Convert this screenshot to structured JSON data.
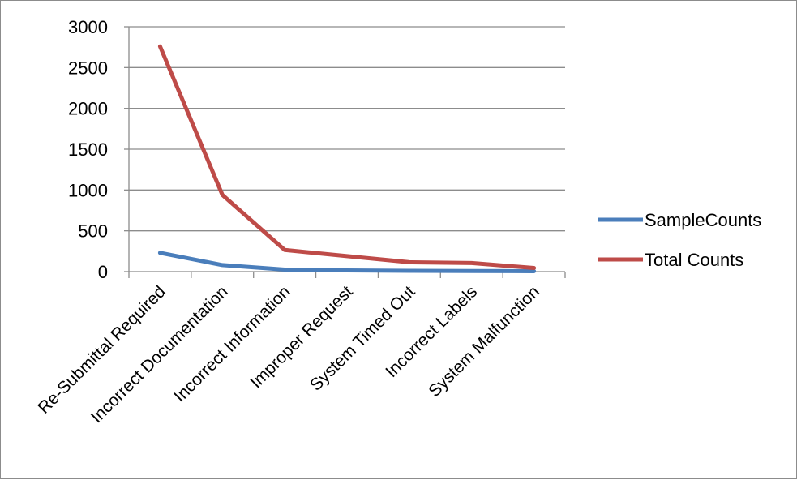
{
  "chart_data": {
    "type": "line",
    "title": "",
    "xlabel": "",
    "ylabel": "",
    "ylim": [
      0,
      3000
    ],
    "yticks": [
      0,
      500,
      1000,
      1500,
      2000,
      2500,
      3000
    ],
    "grid": true,
    "legend_position": "right",
    "categories": [
      "Re-Submittal Required",
      "Incorrect Documentation",
      "Incorrect Information",
      "Improper Request",
      "System Timed Out",
      "Incorrect Labels",
      "System Malfunction"
    ],
    "series": [
      {
        "name": "SampleCounts",
        "color": "#4a7ebb",
        "values": [
          230,
          80,
          25,
          15,
          10,
          8,
          5
        ]
      },
      {
        "name": "Total Counts",
        "color": "#be4b48",
        "values": [
          2760,
          940,
          265,
          190,
          115,
          105,
          45
        ]
      }
    ]
  }
}
